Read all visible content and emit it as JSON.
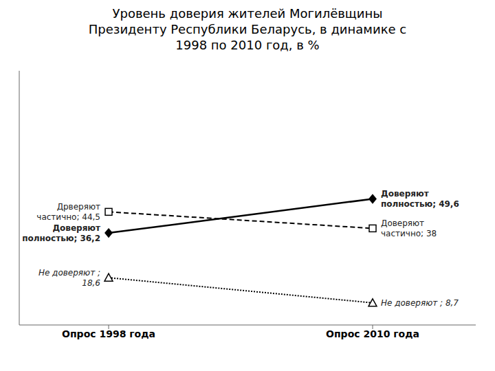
{
  "chart_data": {
    "type": "line",
    "title": "Уровень доверия жителей Могилёвщины\nПрезиденту Республики Беларусь, в динамике с\n1998 по 2010 год, в %",
    "categories": [
      "Опрос 1998 года",
      "Опрос 2010 года"
    ],
    "series": [
      {
        "name": "Доверяют полностью",
        "color": "#000000",
        "values": [
          36.2,
          49.6
        ],
        "value_labels": [
          "Доверяют\nполностью; 36,2",
          "Доверяют\nполностью; 49,6"
        ],
        "line_style": "solid",
        "marker": "diamond"
      },
      {
        "name": "Доверяют частично",
        "color": "#000000",
        "values": [
          44.5,
          38.0
        ],
        "value_labels": [
          "Дрверяют\nчастично; 44,5",
          "Доверяют\nчастично; 38"
        ],
        "line_style": "dashed",
        "marker": "square"
      },
      {
        "name": "Не доверяют",
        "color": "#000000",
        "values": [
          18.6,
          8.7
        ],
        "value_labels": [
          "Не доверяют ;\n18,6",
          "Не доверяют ; 8,7"
        ],
        "line_style": "dotted",
        "marker": "triangle"
      }
    ],
    "ylim": [
      0,
      100
    ],
    "tick_labels": "x",
    "grid": false
  }
}
